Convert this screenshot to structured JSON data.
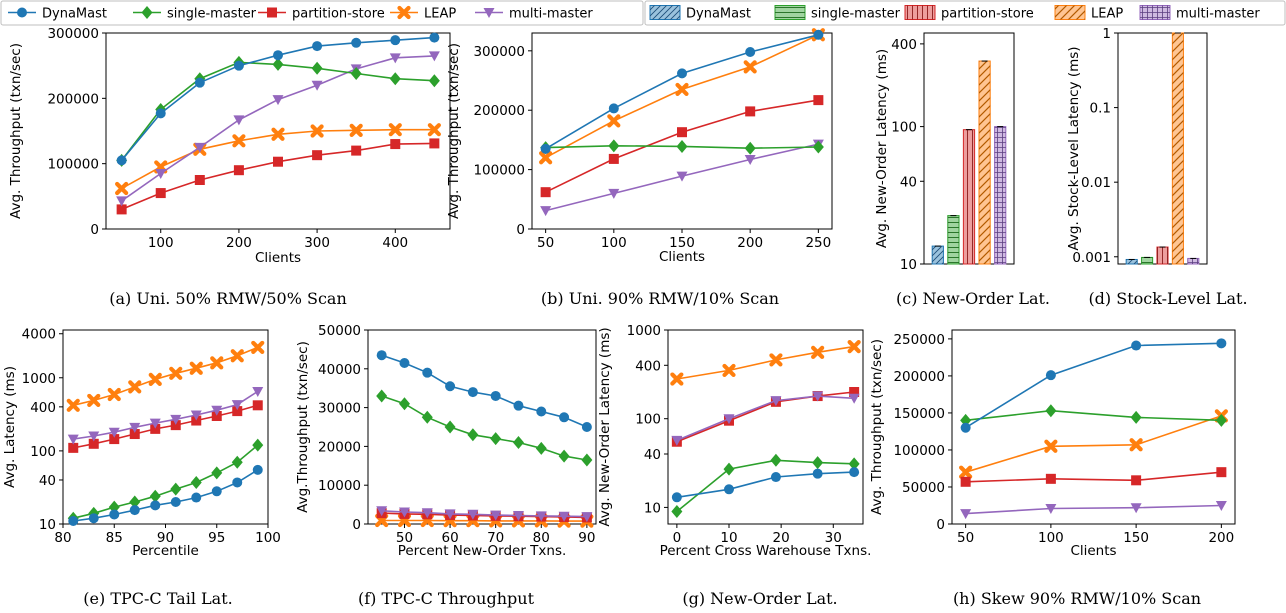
{
  "legend": {
    "lines": [
      {
        "name": "DynaMast",
        "color": "#1f77b4",
        "marker": "circle"
      },
      {
        "name": "single-master",
        "color": "#2ca02c",
        "marker": "diamond"
      },
      {
        "name": "partition-store",
        "color": "#d62728",
        "marker": "square"
      },
      {
        "name": "LEAP",
        "color": "#ff7f0e",
        "marker": "x"
      },
      {
        "name": "multi-master",
        "color": "#9467bd",
        "marker": "tri"
      }
    ],
    "bars": [
      {
        "name": "DynaMast",
        "color": "#1f77b4",
        "hatch": "diag"
      },
      {
        "name": "single-master",
        "color": "#2ca02c",
        "hatch": "horiz"
      },
      {
        "name": "partition-store",
        "color": "#d62728",
        "hatch": "vert"
      },
      {
        "name": "LEAP",
        "color": "#ff7f0e",
        "hatch": "diag2"
      },
      {
        "name": "multi-master",
        "color": "#9467bd",
        "hatch": "grid"
      }
    ]
  },
  "chart_data": [
    {
      "id": "a",
      "type": "line",
      "caption": "(a) Uni. 50% RMW/50% Scan",
      "xlabel": "Clients",
      "ylabel": "Avg. Throughput (txn/sec)",
      "xlim": [
        30,
        470
      ],
      "ylim": [
        0,
        300000
      ],
      "yscale": "linear",
      "xticks": [
        100,
        200,
        300,
        400
      ],
      "yticks": [
        0,
        100000,
        200000,
        300000
      ],
      "x": [
        50,
        100,
        150,
        200,
        250,
        300,
        350,
        400,
        450
      ],
      "series": [
        {
          "name": "DynaMast",
          "values": [
            105000,
            177000,
            224000,
            250000,
            266000,
            280000,
            285000,
            289000,
            293000
          ]
        },
        {
          "name": "single-master",
          "values": [
            105000,
            183000,
            230000,
            255000,
            252000,
            246000,
            238000,
            230000,
            227000
          ]
        },
        {
          "name": "partition-store",
          "values": [
            30000,
            55000,
            75000,
            90000,
            103000,
            113000,
            120000,
            130000,
            131000
          ]
        },
        {
          "name": "LEAP",
          "values": [
            62000,
            95000,
            122000,
            135000,
            145000,
            150000,
            151000,
            152000,
            152000
          ]
        },
        {
          "name": "multi-master",
          "values": [
            43000,
            85000,
            125000,
            167000,
            198000,
            220000,
            245000,
            262000,
            265000
          ]
        }
      ]
    },
    {
      "id": "b",
      "type": "line",
      "caption": "(b) Uni. 90% RMW/10% Scan",
      "xlabel": "Clients",
      "ylabel": "Avg. Throughput (txn/sec)",
      "xlim": [
        40,
        260
      ],
      "ylim": [
        0,
        330000
      ],
      "yscale": "linear",
      "xticks": [
        50,
        100,
        150,
        200,
        250
      ],
      "yticks": [
        0,
        100000,
        200000,
        300000
      ],
      "x": [
        50,
        100,
        150,
        200,
        250
      ],
      "series": [
        {
          "name": "DynaMast",
          "values": [
            135000,
            203000,
            262000,
            298000,
            327000
          ]
        },
        {
          "name": "single-master",
          "values": [
            137000,
            140000,
            139000,
            136000,
            138000
          ]
        },
        {
          "name": "partition-store",
          "values": [
            62000,
            118000,
            163000,
            198000,
            217000
          ]
        },
        {
          "name": "LEAP",
          "values": [
            120000,
            182000,
            235000,
            273000,
            327000
          ]
        },
        {
          "name": "multi-master",
          "values": [
            31000,
            60000,
            89000,
            117000,
            143000
          ]
        }
      ]
    },
    {
      "id": "c",
      "type": "bar",
      "caption": "(c) New-Order Lat.",
      "ylabel": "Avg. New-Order Latency (ms)",
      "yscale": "log",
      "ylim": [
        10,
        480
      ],
      "yticks": [
        10,
        40,
        100,
        400
      ],
      "categories": [
        "DynaMast",
        "single-master",
        "partition-store",
        "LEAP",
        "multi-master"
      ],
      "values": [
        13.5,
        22.5,
        95,
        300,
        100
      ]
    },
    {
      "id": "d",
      "type": "bar",
      "caption": "(d) Stock-Level Lat.",
      "ylabel": "Avg. Stock-Level Latency (ms)",
      "yscale": "log",
      "ylim": [
        0.0008,
        1
      ],
      "yticks": [
        0.001,
        0.01,
        0.1,
        1
      ],
      "ytick_labels": [
        "0.001",
        "0.01",
        "0.1",
        "1"
      ],
      "categories": [
        "DynaMast",
        "single-master",
        "partition-store",
        "LEAP",
        "multi-master"
      ],
      "values": [
        0.00092,
        0.00098,
        0.00135,
        1.0,
        0.00095
      ]
    },
    {
      "id": "e",
      "type": "line",
      "caption": "(e) TPC-C Tail Lat.",
      "xlabel": "Percentile",
      "ylabel": "Avg. Latency (ms)",
      "xlim": [
        80,
        100
      ],
      "ylim": [
        10,
        4500
      ],
      "yscale": "log",
      "xticks": [
        80,
        85,
        90,
        95,
        100
      ],
      "yticks": [
        10,
        40,
        100,
        400,
        1000,
        4000
      ],
      "x": [
        81,
        83,
        85,
        87,
        89,
        91,
        93,
        95,
        97,
        99
      ],
      "series": [
        {
          "name": "DynaMast",
          "values": [
            11,
            12,
            13.5,
            15.5,
            18,
            20,
            23,
            28,
            37,
            55
          ]
        },
        {
          "name": "single-master",
          "values": [
            12,
            14,
            17,
            20,
            24,
            30,
            37,
            50,
            70,
            120
          ]
        },
        {
          "name": "partition-store",
          "values": [
            110,
            125,
            145,
            170,
            200,
            225,
            260,
            300,
            350,
            420
          ]
        },
        {
          "name": "LEAP",
          "values": [
            420,
            490,
            590,
            750,
            950,
            1150,
            1350,
            1600,
            2000,
            2600
          ]
        },
        {
          "name": "multi-master",
          "values": [
            145,
            160,
            180,
            210,
            240,
            270,
            310,
            360,
            430,
            650
          ]
        }
      ]
    },
    {
      "id": "f",
      "type": "line",
      "caption": "(f) TPC-C Throughput",
      "xlabel": "Percent New-Order Txns.",
      "ylabel": "Avg.Throughput (txn/sec)",
      "xlim": [
        42,
        92
      ],
      "ylim": [
        0,
        50000
      ],
      "yscale": "linear",
      "xticks": [
        50,
        60,
        70,
        80,
        90
      ],
      "yticks": [
        0,
        10000,
        20000,
        30000,
        40000,
        50000
      ],
      "x": [
        45,
        50,
        55,
        60,
        65,
        70,
        75,
        80,
        85,
        90
      ],
      "series": [
        {
          "name": "DynaMast",
          "values": [
            43500,
            41500,
            39000,
            35500,
            34000,
            33000,
            30500,
            29000,
            27500,
            25000
          ]
        },
        {
          "name": "single-master",
          "values": [
            33000,
            31000,
            27500,
            25000,
            23000,
            22000,
            21000,
            19500,
            17500,
            16500
          ]
        },
        {
          "name": "partition-store",
          "values": [
            2800,
            2600,
            2500,
            2300,
            2200,
            2100,
            2000,
            1900,
            1800,
            1700
          ]
        },
        {
          "name": "LEAP",
          "values": [
            900,
            900,
            900,
            850,
            850,
            800,
            800,
            800,
            750,
            750
          ]
        },
        {
          "name": "multi-master",
          "values": [
            3400,
            3100,
            2900,
            2600,
            2500,
            2300,
            2200,
            2100,
            2000,
            1900
          ]
        }
      ]
    },
    {
      "id": "g",
      "type": "line",
      "caption": "(g) New-Order Lat.",
      "xlabel": "Percent Cross Warehouse Txns.",
      "ylabel": "Avg. New-Order Latency (ms)",
      "xlim": [
        -1.7,
        35.7
      ],
      "ylim": [
        6.5,
        1000
      ],
      "yscale": "log",
      "xticks": [
        0,
        10,
        20,
        30
      ],
      "yticks": [
        10,
        40,
        100,
        400,
        1000
      ],
      "x": [
        0,
        10,
        19,
        27,
        34
      ],
      "series": [
        {
          "name": "DynaMast",
          "values": [
            13,
            16,
            22,
            24,
            25
          ]
        },
        {
          "name": "single-master",
          "values": [
            9,
            27,
            34,
            32,
            31
          ]
        },
        {
          "name": "partition-store",
          "values": [
            55,
            95,
            155,
            180,
            200
          ]
        },
        {
          "name": "LEAP",
          "values": [
            280,
            350,
            460,
            560,
            650
          ]
        },
        {
          "name": "multi-master",
          "values": [
            57,
            100,
            160,
            180,
            170
          ]
        }
      ]
    },
    {
      "id": "h",
      "type": "line",
      "caption": "(h) Skew 90% RMW/10% Scan",
      "xlabel": "Clients",
      "ylabel": "Avg. Throughput (txn/sec)",
      "xlim": [
        42,
        208
      ],
      "ylim": [
        0,
        262000
      ],
      "yscale": "linear",
      "xticks": [
        50,
        100,
        150,
        200
      ],
      "yticks": [
        0,
        50000,
        100000,
        150000,
        200000,
        250000
      ],
      "x": [
        50,
        100,
        150,
        200
      ],
      "series": [
        {
          "name": "DynaMast",
          "values": [
            130000,
            201000,
            241000,
            244000
          ]
        },
        {
          "name": "single-master",
          "values": [
            140000,
            153000,
            144000,
            140000
          ]
        },
        {
          "name": "partition-store",
          "values": [
            57000,
            61000,
            59000,
            70000
          ]
        },
        {
          "name": "LEAP",
          "values": [
            70000,
            105000,
            107000,
            146000
          ]
        },
        {
          "name": "multi-master",
          "values": [
            14000,
            21000,
            22000,
            25000
          ]
        }
      ]
    }
  ]
}
